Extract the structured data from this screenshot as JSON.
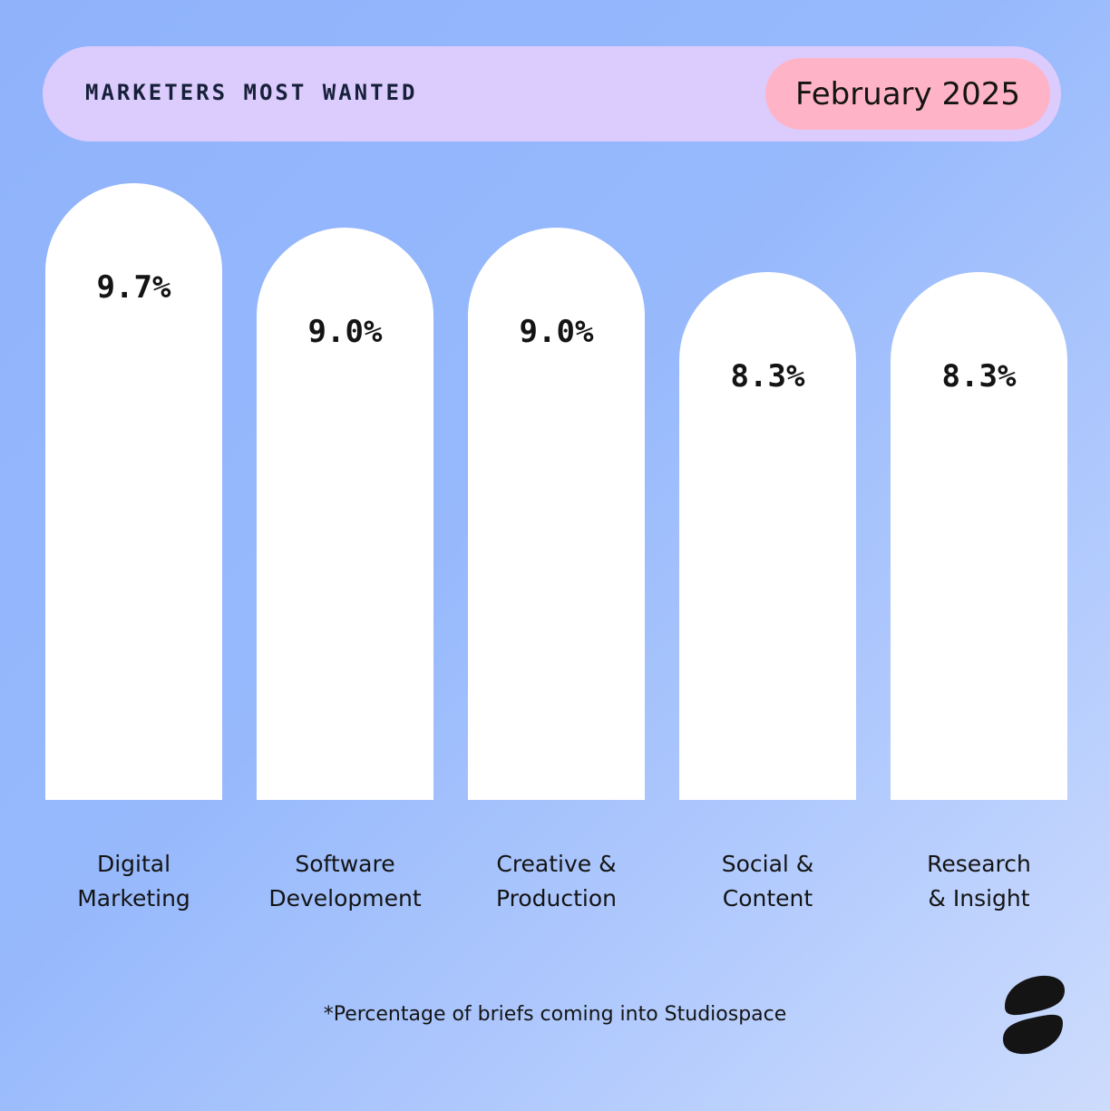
{
  "header": {
    "title": "MARKETERS MOST WANTED",
    "date": "February 2025"
  },
  "chart_data": {
    "type": "bar",
    "categories": [
      "Digital\nMarketing",
      "Software\nDevelopment",
      "Creative &\nProduction",
      "Social &\nContent",
      "Research\n& Insight"
    ],
    "values": [
      9.7,
      9.0,
      9.0,
      8.3,
      8.3
    ],
    "value_labels": [
      "9.7%",
      "9.0%",
      "9.0%",
      "8.3%",
      "8.3%"
    ],
    "title": "",
    "xlabel": "",
    "ylabel": "",
    "grid": false,
    "bar_color": "#ffffff"
  },
  "footnote": "*Percentage of briefs coming into Studiospace",
  "logo": {
    "icon": "studiospace-logo-icon",
    "color": "#141414"
  },
  "colors": {
    "background": "#8fb2fb",
    "header_bg": "#dccbfd",
    "date_pill_bg": "#ffb3c6",
    "text": "#141414"
  }
}
